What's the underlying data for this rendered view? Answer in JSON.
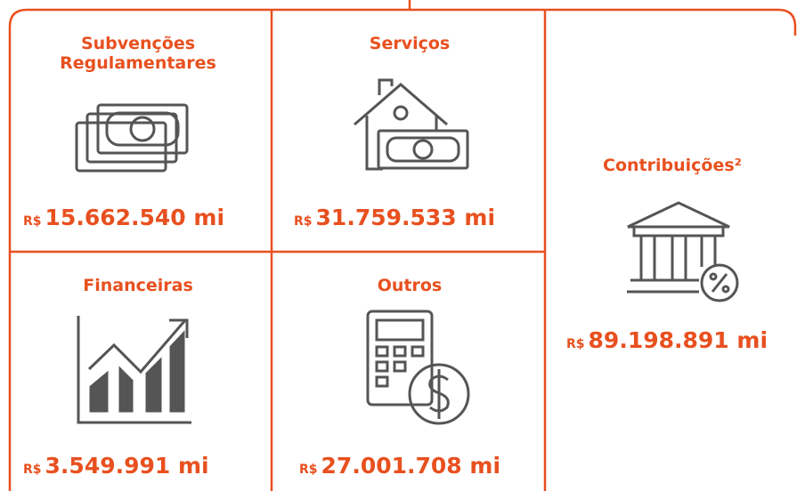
{
  "cards": [
    {
      "title": "Subvenções Regulamentares",
      "currency": "R$",
      "amount": "15.662.540 mi"
    },
    {
      "title": "Serviços",
      "currency": "R$",
      "amount": "31.759.533 mi"
    },
    {
      "title": "Contribuições²",
      "currency": "R$",
      "amount": "89.198.891 mi"
    },
    {
      "title": "Financeiras",
      "currency": "R$",
      "amount": "3.549.991 mi"
    },
    {
      "title": "Outros",
      "currency": "R$",
      "amount": "27.001.708 mi"
    }
  ]
}
